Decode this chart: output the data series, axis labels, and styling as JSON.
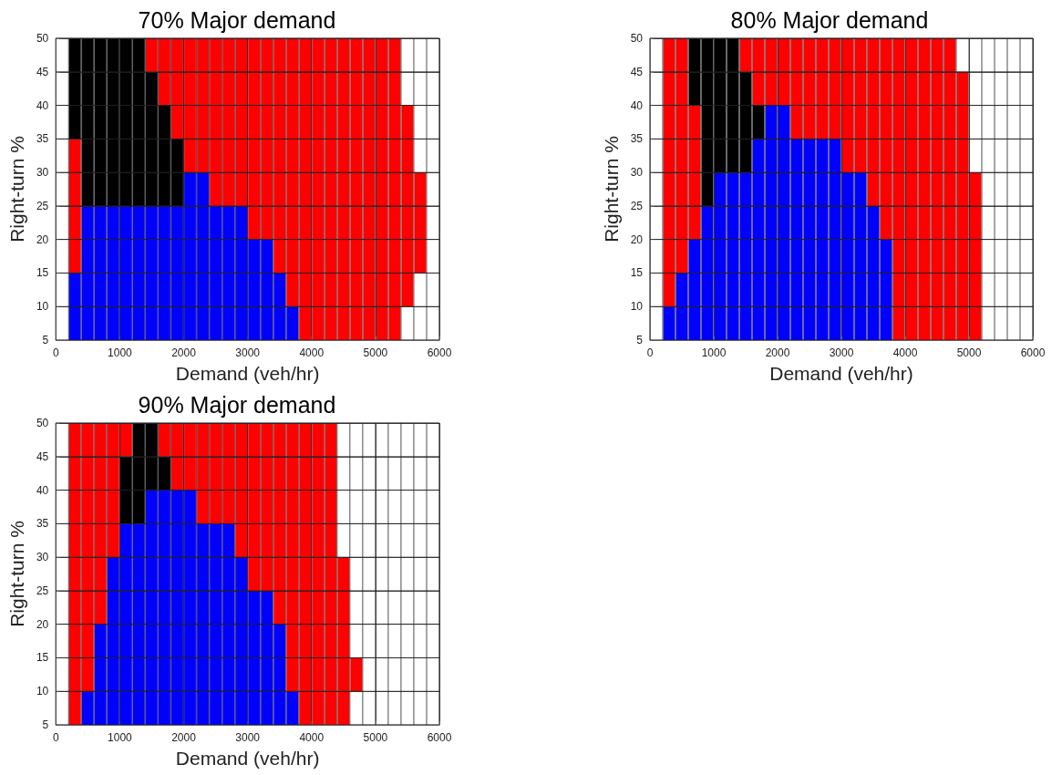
{
  "chart_data": [
    {
      "type": "bar",
      "title": "70% Major demand",
      "xlabel": "Demand (veh/hr)",
      "ylabel": "Right-turn %",
      "xlim": [
        0,
        6000
      ],
      "ylim": [
        5,
        50
      ],
      "grid": true,
      "xticks": [
        0,
        {
          "value": 200,
          "label": null
        },
        {
          "value": 400,
          "label": null
        },
        {
          "value": 600,
          "label": null
        },
        {
          "value": 800,
          "label": null
        },
        1000,
        {
          "value": 1200,
          "label": null
        },
        {
          "value": 1400,
          "label": null
        },
        {
          "value": 1600,
          "label": null
        },
        {
          "value": 1800,
          "label": null
        },
        2000,
        {
          "value": 2200,
          "label": null
        },
        {
          "value": 2400,
          "label": null
        },
        {
          "value": 2600,
          "label": null
        },
        {
          "value": 2800,
          "label": null
        },
        3000,
        {
          "value": 3200,
          "label": null
        },
        {
          "value": 3400,
          "label": null
        },
        {
          "value": 3600,
          "label": null
        },
        {
          "value": 3800,
          "label": null
        },
        4000,
        {
          "value": 4200,
          "label": null
        },
        {
          "value": 4400,
          "label": null
        },
        {
          "value": 4600,
          "label": null
        },
        {
          "value": 4800,
          "label": null
        },
        5000,
        {
          "value": 5200,
          "label": null
        },
        {
          "value": 5400,
          "label": null
        },
        {
          "value": 5600,
          "label": null
        },
        {
          "value": 5800,
          "label": null
        },
        6000
      ],
      "yticks": [
        5,
        10,
        15,
        20,
        25,
        30,
        35,
        40,
        45,
        50
      ],
      "series": [
        {
          "color": "#0000ff",
          "x": [
            300,
            500,
            700,
            900,
            1100,
            1300,
            1500,
            1700,
            1900,
            2100,
            2300,
            2500,
            2700,
            2900,
            3100,
            3300,
            3500,
            3700
          ],
          "base": [
            5,
            5,
            5,
            5,
            5,
            5,
            5,
            5,
            5,
            5,
            5,
            5,
            5,
            5,
            5,
            5,
            5,
            5
          ],
          "values": [
            10,
            20,
            20,
            20,
            20,
            20,
            20,
            20,
            20,
            25,
            25,
            20,
            20,
            20,
            15,
            15,
            10,
            5
          ]
        },
        {
          "color": "#000000",
          "x": [
            300,
            500,
            700,
            900,
            1100,
            1300,
            1500,
            1700,
            1900
          ],
          "base": [
            35,
            25,
            25,
            25,
            25,
            25,
            25,
            25,
            25
          ],
          "values": [
            15,
            25,
            25,
            25,
            25,
            25,
            20,
            15,
            10
          ]
        },
        {
          "color": "#ff0000",
          "x": [
            300,
            1500,
            1700,
            1900,
            2100,
            2300,
            2500,
            2700,
            2900,
            3100,
            3300,
            3500,
            3700,
            3900,
            4100,
            4300,
            4500,
            4700,
            4900,
            5100,
            5300,
            5500,
            5700
          ],
          "base": [
            15,
            45,
            40,
            35,
            30,
            30,
            25,
            25,
            25,
            20,
            20,
            15,
            10,
            5,
            5,
            5,
            5,
            5,
            5,
            5,
            5,
            10,
            15
          ],
          "values": [
            20,
            5,
            10,
            15,
            20,
            20,
            25,
            25,
            25,
            30,
            30,
            35,
            40,
            45,
            45,
            45,
            45,
            45,
            45,
            45,
            45,
            30,
            15
          ]
        }
      ]
    },
    {
      "type": "bar",
      "title": "80% Major demand",
      "xlabel": "Demand (veh/hr)",
      "ylabel": "Right-turn %",
      "xlim": [
        0,
        6000
      ],
      "ylim": [
        5,
        50
      ],
      "grid": true,
      "xticks": [
        0,
        {
          "value": 200,
          "label": null
        },
        {
          "value": 400,
          "label": null
        },
        {
          "value": 600,
          "label": null
        },
        {
          "value": 800,
          "label": null
        },
        1000,
        {
          "value": 1200,
          "label": null
        },
        {
          "value": 1400,
          "label": null
        },
        {
          "value": 1600,
          "label": null
        },
        {
          "value": 1800,
          "label": null
        },
        2000,
        {
          "value": 2200,
          "label": null
        },
        {
          "value": 2400,
          "label": null
        },
        {
          "value": 2600,
          "label": null
        },
        {
          "value": 2800,
          "label": null
        },
        3000,
        {
          "value": 3200,
          "label": null
        },
        {
          "value": 3400,
          "label": null
        },
        {
          "value": 3600,
          "label": null
        },
        {
          "value": 3800,
          "label": null
        },
        4000,
        {
          "value": 4200,
          "label": null
        },
        {
          "value": 4400,
          "label": null
        },
        {
          "value": 4600,
          "label": null
        },
        {
          "value": 4800,
          "label": null
        },
        5000,
        {
          "value": 5200,
          "label": null
        },
        {
          "value": 5400,
          "label": null
        },
        {
          "value": 5600,
          "label": null
        },
        {
          "value": 5800,
          "label": null
        },
        6000
      ],
      "yticks": [
        5,
        10,
        15,
        20,
        25,
        30,
        35,
        40,
        45,
        50
      ],
      "series": [
        {
          "color": "#0000ff",
          "x": [
            300,
            500,
            700,
            900,
            1100,
            1300,
            1500,
            1700,
            1900,
            2100,
            2300,
            2500,
            2700,
            2900,
            3100,
            3300,
            3500,
            3700
          ],
          "base": [
            5,
            5,
            5,
            5,
            5,
            5,
            5,
            5,
            5,
            5,
            5,
            5,
            5,
            5,
            5,
            5,
            5,
            5
          ],
          "values": [
            5,
            10,
            15,
            20,
            25,
            25,
            25,
            30,
            35,
            35,
            30,
            30,
            30,
            30,
            25,
            25,
            20,
            15
          ]
        },
        {
          "color": "#000000",
          "x": [
            700,
            900,
            1100,
            1300,
            1500,
            1700
          ],
          "base": [
            40,
            25,
            30,
            30,
            30,
            35
          ],
          "values": [
            10,
            25,
            20,
            20,
            15,
            5
          ]
        },
        {
          "color": "#ff0000",
          "x": [
            300,
            500,
            700,
            1500,
            1700,
            1900,
            2100,
            2300,
            2500,
            2700,
            2900,
            3100,
            3300,
            3500,
            3700,
            3900,
            4100,
            4300,
            4500,
            4700,
            4900,
            5100
          ],
          "base": [
            10,
            15,
            20,
            45,
            40,
            40,
            40,
            35,
            35,
            35,
            35,
            30,
            30,
            25,
            20,
            5,
            5,
            5,
            5,
            5,
            5,
            5
          ],
          "values": [
            40,
            35,
            20,
            5,
            10,
            10,
            10,
            15,
            15,
            15,
            15,
            20,
            20,
            25,
            30,
            45,
            45,
            45,
            45,
            45,
            40,
            25
          ]
        }
      ]
    },
    {
      "type": "bar",
      "title": "90% Major demand",
      "xlabel": "Demand (veh/hr)",
      "ylabel": "Right-turn %",
      "xlim": [
        0,
        6000
      ],
      "ylim": [
        5,
        50
      ],
      "grid": true,
      "xticks": [
        0,
        {
          "value": 200,
          "label": null
        },
        {
          "value": 400,
          "label": null
        },
        {
          "value": 600,
          "label": null
        },
        {
          "value": 800,
          "label": null
        },
        1000,
        {
          "value": 1200,
          "label": null
        },
        {
          "value": 1400,
          "label": null
        },
        {
          "value": 1600,
          "label": null
        },
        {
          "value": 1800,
          "label": null
        },
        2000,
        {
          "value": 2200,
          "label": null
        },
        {
          "value": 2400,
          "label": null
        },
        {
          "value": 2600,
          "label": null
        },
        {
          "value": 2800,
          "label": null
        },
        3000,
        {
          "value": 3200,
          "label": null
        },
        {
          "value": 3400,
          "label": null
        },
        {
          "value": 3600,
          "label": null
        },
        {
          "value": 3800,
          "label": null
        },
        4000,
        {
          "value": 4200,
          "label": null
        },
        {
          "value": 4400,
          "label": null
        },
        {
          "value": 4600,
          "label": null
        },
        {
          "value": 4800,
          "label": null
        },
        5000,
        {
          "value": 5200,
          "label": null
        },
        {
          "value": 5400,
          "label": null
        },
        {
          "value": 5600,
          "label": null
        },
        {
          "value": 5800,
          "label": null
        },
        6000
      ],
      "yticks": [
        5,
        10,
        15,
        20,
        25,
        30,
        35,
        40,
        45,
        50
      ],
      "series": [
        {
          "color": "#0000ff",
          "x": [
            500,
            700,
            900,
            1100,
            1300,
            1500,
            1700,
            1900,
            2100,
            2300,
            2500,
            2700,
            2900,
            3100,
            3300,
            3500,
            3700
          ],
          "base": [
            5,
            5,
            5,
            5,
            5,
            5,
            5,
            5,
            5,
            5,
            5,
            5,
            5,
            5,
            5,
            5,
            5
          ],
          "values": [
            5,
            15,
            25,
            30,
            30,
            35,
            35,
            35,
            35,
            30,
            30,
            30,
            25,
            20,
            20,
            15,
            5
          ]
        },
        {
          "color": "#000000",
          "x": [
            1100,
            1300,
            1500,
            1700
          ],
          "base": [
            35,
            35,
            40,
            40
          ],
          "values": [
            10,
            15,
            10,
            5
          ]
        },
        {
          "color": "#ff0000",
          "x": [
            300,
            500,
            700,
            900,
            1100,
            1700,
            1900,
            2100,
            2300,
            2500,
            2700,
            2900,
            3100,
            3300,
            3500,
            3700,
            3900,
            4100,
            4300,
            4500,
            4700
          ],
          "base": [
            5,
            10,
            20,
            30,
            45,
            45,
            40,
            40,
            35,
            35,
            35,
            30,
            25,
            25,
            20,
            10,
            5,
            5,
            5,
            5,
            10
          ],
          "values": [
            45,
            40,
            30,
            20,
            5,
            5,
            10,
            10,
            15,
            15,
            15,
            20,
            25,
            25,
            30,
            40,
            45,
            45,
            45,
            25,
            5
          ]
        }
      ]
    }
  ]
}
